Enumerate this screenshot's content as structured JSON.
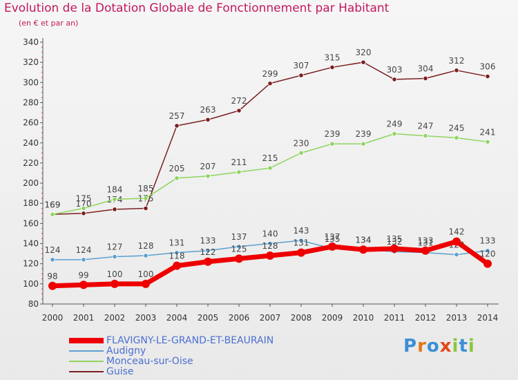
{
  "title": "Evolution de la Dotation Globale de Fonctionnement par Habitant",
  "subtitle": "(en € et par an)",
  "brand": "Proxiti",
  "chart_data": {
    "type": "line",
    "title": "Evolution de la Dotation Globale de Fonctionnement par Habitant",
    "subtitle": "(en € et par an)",
    "x": [
      "2000",
      "2001",
      "2002",
      "2003",
      "2004",
      "2005",
      "2006",
      "2007",
      "2008",
      "2009",
      "2010",
      "2011",
      "2012",
      "2013",
      "2014"
    ],
    "ylim": [
      80,
      340
    ],
    "yticks": [
      80,
      100,
      120,
      140,
      160,
      180,
      200,
      220,
      240,
      260,
      280,
      300,
      320,
      340
    ],
    "grid": false,
    "legend_position": "bottom-left",
    "series": [
      {
        "name": "Guise",
        "color": "#7b1f1f",
        "values": [
          169,
          170,
          174,
          175,
          257,
          263,
          272,
          299,
          307,
          315,
          320,
          303,
          304,
          312,
          306
        ]
      },
      {
        "name": "Monceau-sur-Oise",
        "color": "#8fd45f",
        "values": [
          169,
          175,
          184,
          185,
          205,
          207,
          211,
          215,
          230,
          239,
          239,
          249,
          247,
          245,
          241
        ]
      },
      {
        "name": "Audigny",
        "color": "#5b9fd0",
        "values": [
          124,
          124,
          127,
          128,
          131,
          133,
          137,
          140,
          143,
          135,
          134,
          132,
          131,
          129,
          133
        ]
      },
      {
        "name": "FLAVIGNY-LE-GRAND-ET-BEAURAIN",
        "color": "#ee0000",
        "values": [
          98,
          99,
          100,
          100,
          118,
          122,
          125,
          128,
          131,
          137,
          134,
          135,
          133,
          142,
          120
        ]
      }
    ]
  },
  "legend": [
    {
      "name": "FLAVIGNY-LE-GRAND-ET-BEAURAIN",
      "color": "#ee0000"
    },
    {
      "name": "Audigny",
      "color": "#5b9fd0"
    },
    {
      "name": "Monceau-sur-Oise",
      "color": "#8fd45f"
    },
    {
      "name": "Guise",
      "color": "#7b1f1f"
    }
  ]
}
